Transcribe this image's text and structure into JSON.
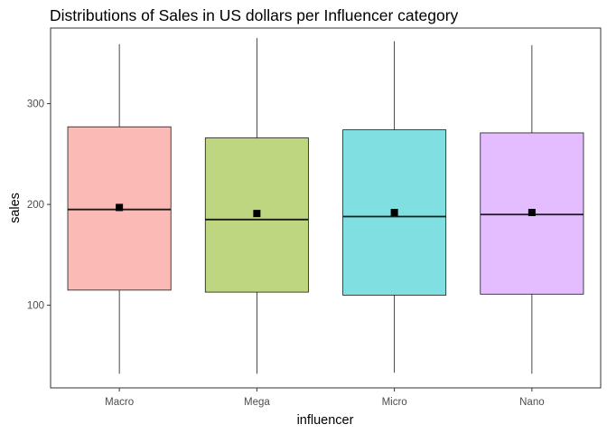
{
  "chart_data": {
    "type": "box",
    "title": "Distributions of Sales in US dollars per Influencer category",
    "xlabel": "influencer",
    "ylabel": "sales",
    "categories": [
      "Macro",
      "Mega",
      "Micro",
      "Nano"
    ],
    "boxes": [
      {
        "category": "Macro",
        "min": 32,
        "q1": 115,
        "median": 195,
        "q3": 277,
        "max": 359,
        "mean": 197,
        "color": "#F8766D"
      },
      {
        "category": "Mega",
        "min": 32,
        "q1": 113,
        "median": 185,
        "q3": 266,
        "max": 365,
        "mean": 191,
        "color": "#7CAE00"
      },
      {
        "category": "Micro",
        "min": 33,
        "q1": 110,
        "median": 188,
        "q3": 274,
        "max": 362,
        "mean": 192,
        "color": "#00BFC4"
      },
      {
        "category": "Nano",
        "min": 32,
        "q1": 111,
        "median": 190,
        "q3": 271,
        "max": 358,
        "mean": 192,
        "color": "#C77CFF"
      }
    ],
    "box_fill_alpha": 0.5,
    "mean_marker": "square",
    "ylim": [
      18,
      375
    ],
    "yticks": [
      100,
      200,
      300
    ],
    "grid": false,
    "legend": "none"
  }
}
